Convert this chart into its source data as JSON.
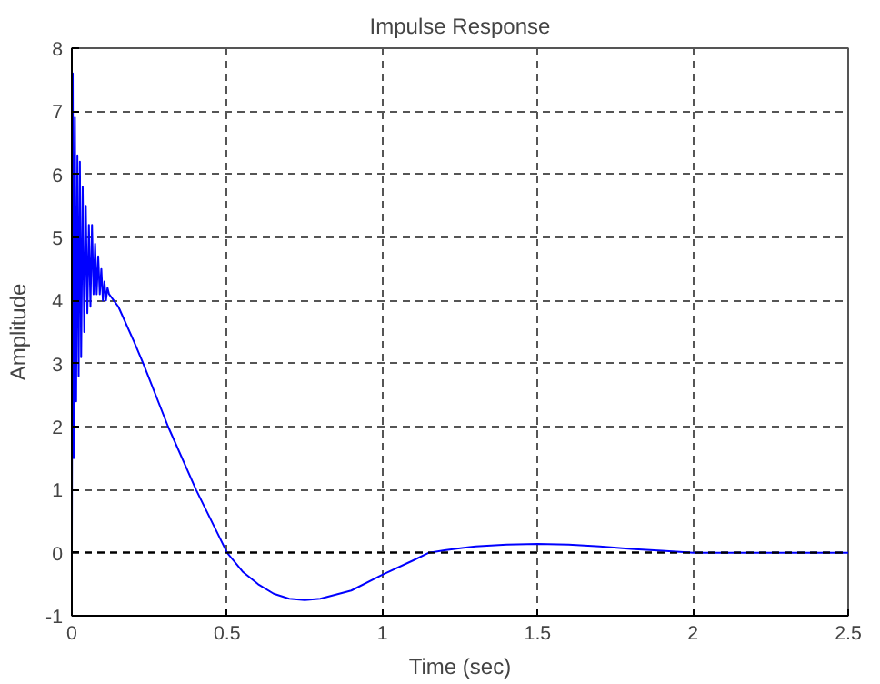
{
  "chart_data": {
    "type": "line",
    "title": "Impulse Response",
    "xlabel": "Time (sec)",
    "ylabel": "Amplitude",
    "xlim": [
      0,
      2.5
    ],
    "ylim": [
      -1,
      8
    ],
    "xticks": [
      0,
      0.5,
      1,
      1.5,
      2,
      2.5
    ],
    "yticks": [
      -1,
      0,
      1,
      2,
      3,
      4,
      5,
      6,
      7,
      8
    ],
    "grid": true,
    "line_style": "solid",
    "ref_lines": [
      {
        "axis": "y",
        "value": 0,
        "color": "#000000",
        "line_style": "dashed"
      }
    ],
    "series": [
      {
        "color": "#0000ff",
        "x": [
          0,
          0.003,
          0.006,
          0.01,
          0.014,
          0.018,
          0.022,
          0.026,
          0.03,
          0.035,
          0.04,
          0.045,
          0.05,
          0.055,
          0.06,
          0.065,
          0.07,
          0.075,
          0.08,
          0.085,
          0.09,
          0.095,
          0.1,
          0.105,
          0.11,
          0.115,
          0.12,
          0.15,
          0.2,
          0.23,
          0.31,
          0.4,
          0.5,
          0.55,
          0.6,
          0.65,
          0.7,
          0.75,
          0.8,
          0.9,
          1.0,
          1.1,
          1.15,
          1.2,
          1.3,
          1.4,
          1.5,
          1.6,
          1.7,
          1.8,
          1.9,
          1.97,
          2.0,
          2.5
        ],
        "values": [
          0,
          7.6,
          1.5,
          6.9,
          2.4,
          6.3,
          2.8,
          6.2,
          3.1,
          5.8,
          3.5,
          5.5,
          3.8,
          5.2,
          3.9,
          5.2,
          4.1,
          4.9,
          4.1,
          4.7,
          4.1,
          4.5,
          4.0,
          4.3,
          4.0,
          4.2,
          4.1,
          3.9,
          3.35,
          3.0,
          2.0,
          1.0,
          0,
          -0.3,
          -0.5,
          -0.65,
          -0.73,
          -0.75,
          -0.73,
          -0.6,
          -0.35,
          -0.12,
          0,
          0.04,
          0.1,
          0.13,
          0.14,
          0.13,
          0.1,
          0.06,
          0.03,
          0.01,
          0,
          0
        ]
      }
    ]
  }
}
